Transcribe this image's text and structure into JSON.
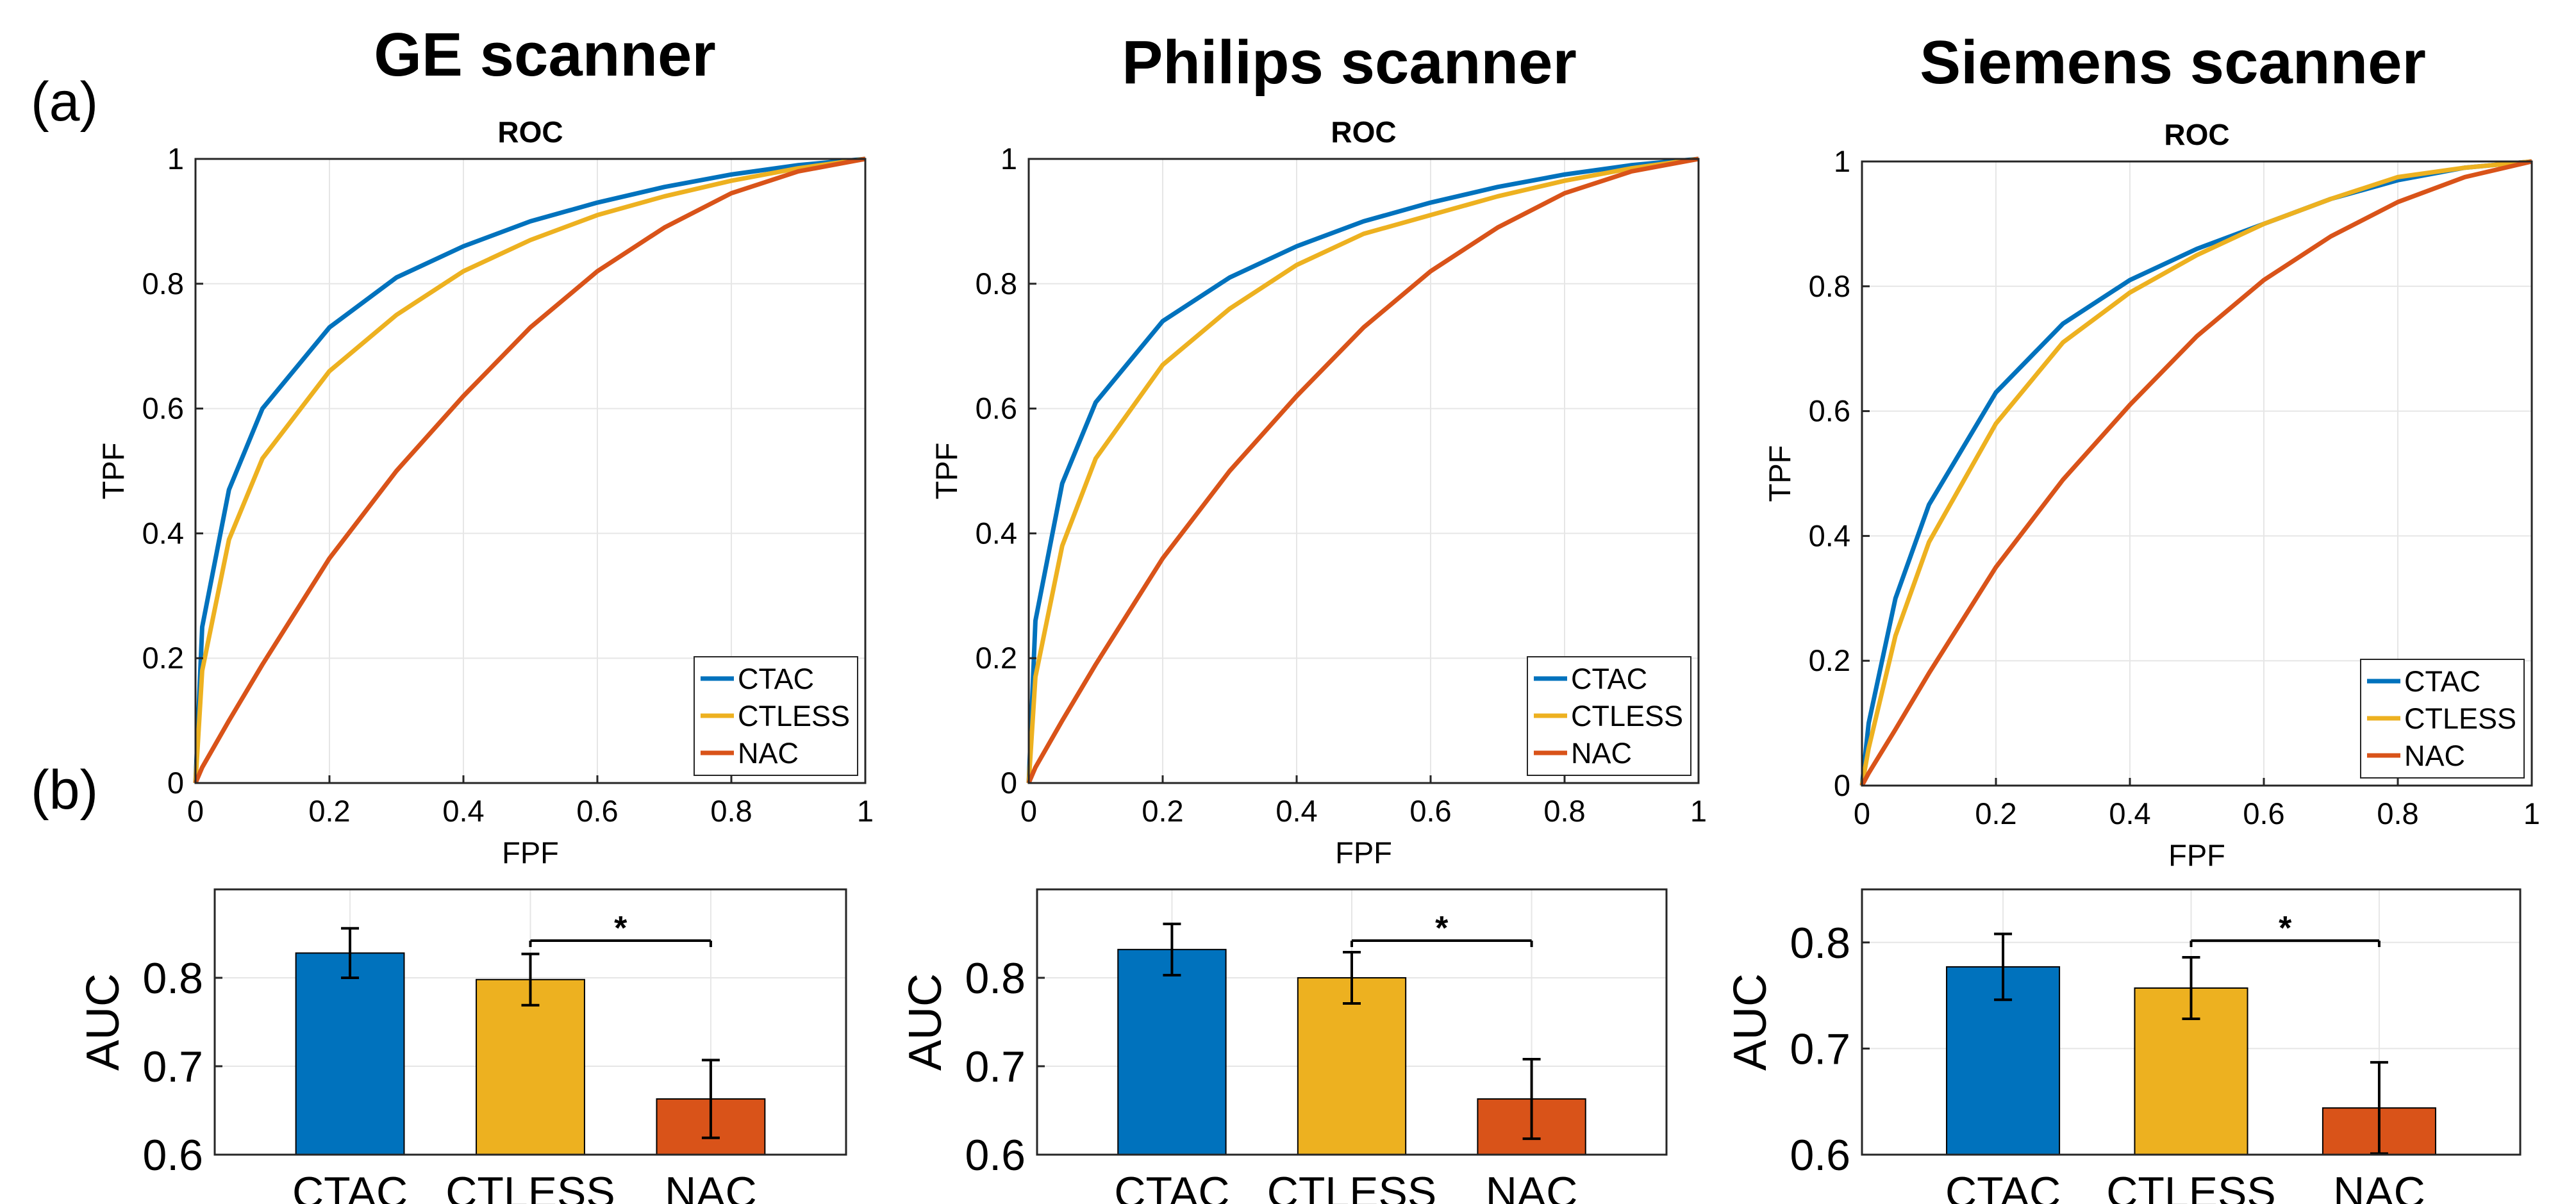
{
  "panel_labels": {
    "a": "(a)",
    "b": "(b)"
  },
  "colors": {
    "CTAC": "#0072BD",
    "CTLESS": "#EDB120",
    "NAC": "#D95319",
    "grid": "#e6e6e6",
    "axis": "#262626"
  },
  "scanners": [
    {
      "title": "GE scanner"
    },
    {
      "title": "Philips scanner"
    },
    {
      "title": "Siemens scanner"
    }
  ],
  "chart_data": [
    {
      "type": "line",
      "title": "ROC",
      "xlabel": "FPF",
      "ylabel": "TPF",
      "xlim": [
        0,
        1
      ],
      "ylim": [
        0,
        1
      ],
      "xticks": [
        "0",
        "0.2",
        "0.4",
        "0.6",
        "0.8",
        "1"
      ],
      "yticks": [
        "0",
        "0.2",
        "0.4",
        "0.6",
        "0.8",
        "1"
      ],
      "grid": true,
      "legend_placement": "bottom-right",
      "series": [
        {
          "name": "CTAC",
          "x": [
            0,
            0.01,
            0.05,
            0.1,
            0.2,
            0.3,
            0.4,
            0.5,
            0.6,
            0.7,
            0.8,
            0.9,
            1
          ],
          "y": [
            0,
            0.25,
            0.47,
            0.6,
            0.73,
            0.81,
            0.86,
            0.9,
            0.93,
            0.955,
            0.975,
            0.99,
            1
          ]
        },
        {
          "name": "CTLESS",
          "x": [
            0,
            0.01,
            0.05,
            0.1,
            0.2,
            0.3,
            0.4,
            0.5,
            0.6,
            0.7,
            0.8,
            0.9,
            1
          ],
          "y": [
            0,
            0.18,
            0.39,
            0.52,
            0.66,
            0.75,
            0.82,
            0.87,
            0.91,
            0.94,
            0.965,
            0.985,
            1
          ]
        },
        {
          "name": "NAC",
          "x": [
            0,
            0.01,
            0.05,
            0.1,
            0.2,
            0.3,
            0.4,
            0.5,
            0.6,
            0.7,
            0.8,
            0.9,
            1
          ],
          "y": [
            0,
            0.025,
            0.1,
            0.19,
            0.36,
            0.5,
            0.62,
            0.73,
            0.82,
            0.89,
            0.945,
            0.98,
            1
          ]
        }
      ]
    },
    {
      "type": "line",
      "title": "ROC",
      "xlabel": "FPF",
      "ylabel": "TPF",
      "xlim": [
        0,
        1
      ],
      "ylim": [
        0,
        1
      ],
      "xticks": [
        "0",
        "0.2",
        "0.4",
        "0.6",
        "0.8",
        "1"
      ],
      "yticks": [
        "0",
        "0.2",
        "0.4",
        "0.6",
        "0.8",
        "1"
      ],
      "grid": true,
      "legend_placement": "bottom-right",
      "series": [
        {
          "name": "CTAC",
          "x": [
            0,
            0.01,
            0.05,
            0.1,
            0.2,
            0.3,
            0.4,
            0.5,
            0.6,
            0.7,
            0.8,
            0.9,
            1
          ],
          "y": [
            0,
            0.26,
            0.48,
            0.61,
            0.74,
            0.81,
            0.86,
            0.9,
            0.93,
            0.955,
            0.975,
            0.99,
            1
          ]
        },
        {
          "name": "CTLESS",
          "x": [
            0,
            0.01,
            0.05,
            0.1,
            0.2,
            0.3,
            0.4,
            0.5,
            0.6,
            0.7,
            0.8,
            0.9,
            1
          ],
          "y": [
            0,
            0.17,
            0.38,
            0.52,
            0.67,
            0.76,
            0.83,
            0.88,
            0.91,
            0.94,
            0.965,
            0.985,
            1
          ]
        },
        {
          "name": "NAC",
          "x": [
            0,
            0.01,
            0.05,
            0.1,
            0.2,
            0.3,
            0.4,
            0.5,
            0.6,
            0.7,
            0.8,
            0.9,
            1
          ],
          "y": [
            0,
            0.025,
            0.1,
            0.19,
            0.36,
            0.5,
            0.62,
            0.73,
            0.82,
            0.89,
            0.945,
            0.98,
            1
          ]
        }
      ]
    },
    {
      "type": "line",
      "title": "ROC",
      "xlabel": "FPF",
      "ylabel": "TPF",
      "xlim": [
        0,
        1
      ],
      "ylim": [
        0,
        1
      ],
      "xticks": [
        "0",
        "0.2",
        "0.4",
        "0.6",
        "0.8",
        "1"
      ],
      "yticks": [
        "0",
        "0.2",
        "0.4",
        "0.6",
        "0.8",
        "1"
      ],
      "grid": true,
      "legend_placement": "bottom-right",
      "series": [
        {
          "name": "CTAC",
          "x": [
            0,
            0.01,
            0.05,
            0.1,
            0.2,
            0.3,
            0.4,
            0.5,
            0.6,
            0.7,
            0.8,
            0.9,
            1
          ],
          "y": [
            0,
            0.1,
            0.3,
            0.45,
            0.63,
            0.74,
            0.81,
            0.86,
            0.9,
            0.94,
            0.97,
            0.99,
            1
          ]
        },
        {
          "name": "CTLESS",
          "x": [
            0,
            0.01,
            0.05,
            0.1,
            0.2,
            0.3,
            0.4,
            0.5,
            0.6,
            0.7,
            0.8,
            0.9,
            1
          ],
          "y": [
            0,
            0.06,
            0.24,
            0.39,
            0.58,
            0.71,
            0.79,
            0.85,
            0.9,
            0.94,
            0.975,
            0.99,
            1
          ]
        },
        {
          "name": "NAC",
          "x": [
            0,
            0.01,
            0.05,
            0.1,
            0.2,
            0.3,
            0.4,
            0.5,
            0.6,
            0.7,
            0.8,
            0.9,
            1
          ],
          "y": [
            0,
            0.02,
            0.09,
            0.18,
            0.35,
            0.49,
            0.61,
            0.72,
            0.81,
            0.88,
            0.935,
            0.975,
            1
          ]
        }
      ]
    },
    {
      "type": "bar",
      "ylabel": "AUC",
      "categories": [
        "CTAC",
        "CTLESS",
        "NAC"
      ],
      "values": [
        0.828,
        0.798,
        0.663
      ],
      "errors": [
        0.028,
        0.029,
        0.044
      ],
      "ylim": [
        0.6,
        0.9
      ],
      "yticks": [
        "0.6",
        "0.7",
        "0.8"
      ],
      "grid": true,
      "significance": {
        "from": "CTLESS",
        "to": "NAC",
        "label": "*"
      }
    },
    {
      "type": "bar",
      "ylabel": "AUC",
      "categories": [
        "CTAC",
        "CTLESS",
        "NAC"
      ],
      "values": [
        0.832,
        0.8,
        0.663
      ],
      "errors": [
        0.029,
        0.029,
        0.045
      ],
      "ylim": [
        0.6,
        0.9
      ],
      "yticks": [
        "0.6",
        "0.7",
        "0.8"
      ],
      "grid": true,
      "significance": {
        "from": "CTLESS",
        "to": "NAC",
        "label": "*"
      }
    },
    {
      "type": "bar",
      "ylabel": "AUC",
      "categories": [
        "CTAC",
        "CTLESS",
        "NAC"
      ],
      "values": [
        0.777,
        0.757,
        0.644
      ],
      "errors": [
        0.031,
        0.029,
        0.043
      ],
      "ylim": [
        0.6,
        0.85
      ],
      "yticks": [
        "0.6",
        "0.7",
        "0.8"
      ],
      "grid": true,
      "significance": {
        "from": "CTLESS",
        "to": "NAC",
        "label": "*"
      }
    }
  ]
}
